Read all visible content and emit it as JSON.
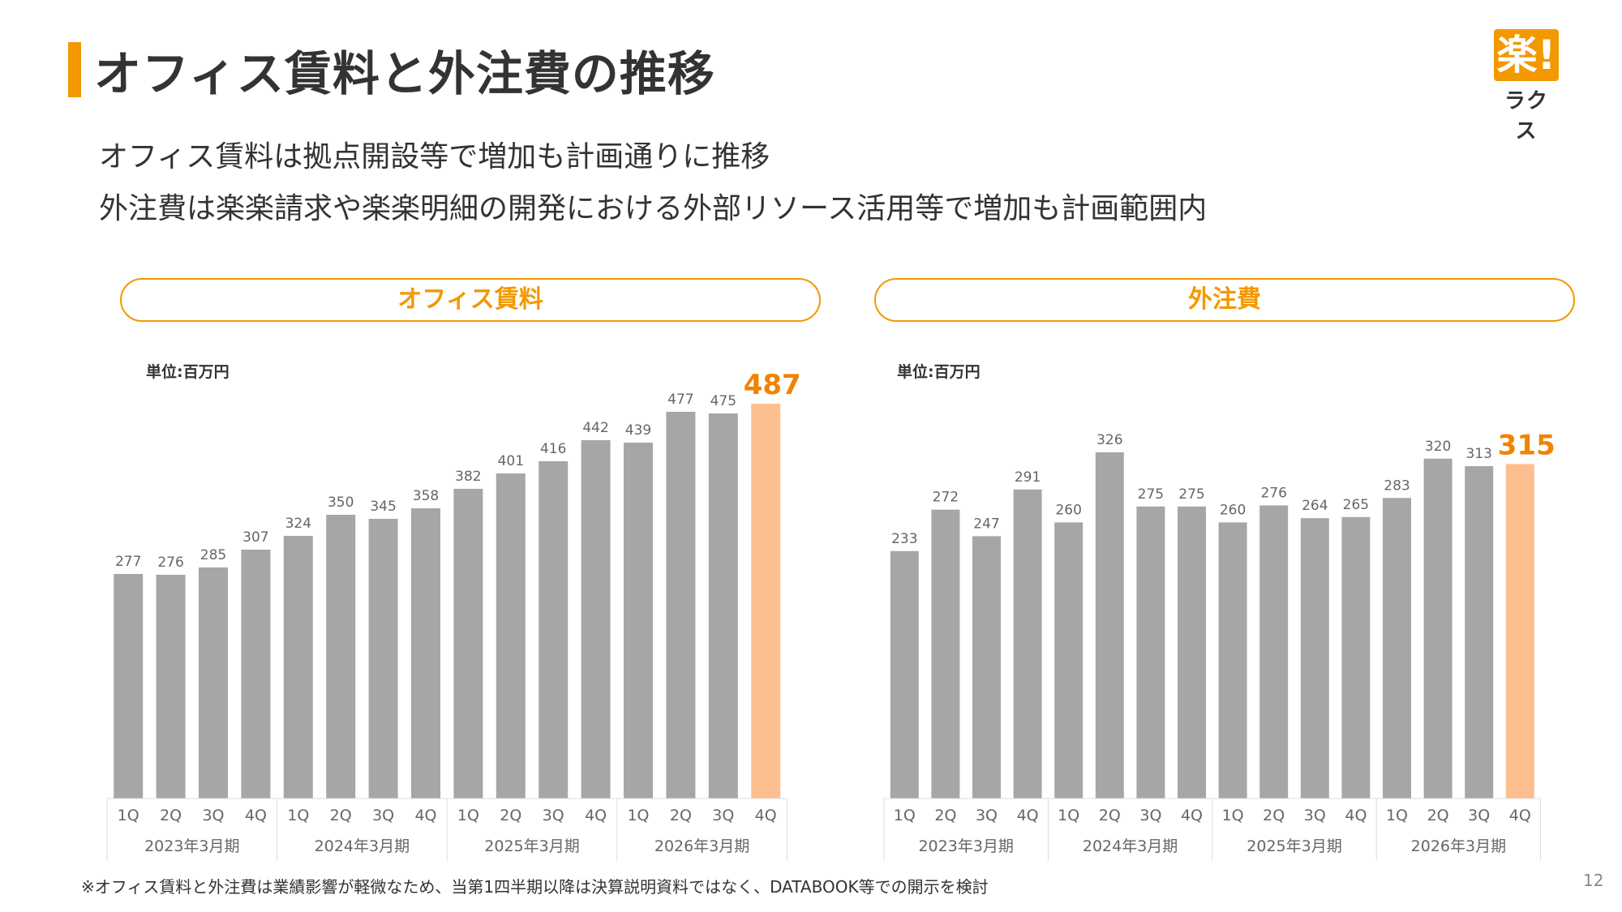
{
  "header": {
    "title": "オフィス賃料と外注費の推移",
    "subtitle_lines": [
      "オフィス賃料は拠点開設等で増加も計画通りに推移",
      "外注費は楽楽請求や楽楽明細の開発における外部リソース活用等で増加も計画範囲内"
    ]
  },
  "logo": {
    "mark": "楽!",
    "text": "ラクス"
  },
  "colors": {
    "accent": "#F39800",
    "bar_gray": "#A6A6A6",
    "bar_highlight": "#FDBF8F",
    "label_highlight": "#F08300"
  },
  "chart_data": [
    {
      "type": "bar",
      "title": "オフィス賃料",
      "unit": "単位:百万円",
      "quarters": [
        "1Q",
        "2Q",
        "3Q",
        "4Q",
        "1Q",
        "2Q",
        "3Q",
        "4Q",
        "1Q",
        "2Q",
        "3Q",
        "4Q",
        "1Q",
        "2Q",
        "3Q",
        "4Q"
      ],
      "periods": [
        "2023年3月期",
        "2024年3月期",
        "2025年3月期",
        "2026年3月期"
      ],
      "values": [
        277,
        276,
        285,
        307,
        324,
        350,
        345,
        358,
        382,
        401,
        416,
        442,
        439,
        477,
        475,
        487
      ],
      "highlight_index": 15,
      "ylim": [
        0,
        500
      ]
    },
    {
      "type": "bar",
      "title": "外注費",
      "unit": "単位:百万円",
      "quarters": [
        "1Q",
        "2Q",
        "3Q",
        "4Q",
        "1Q",
        "2Q",
        "3Q",
        "4Q",
        "1Q",
        "2Q",
        "3Q",
        "4Q",
        "1Q",
        "2Q",
        "3Q",
        "4Q"
      ],
      "periods": [
        "2023年3月期",
        "2024年3月期",
        "2025年3月期",
        "2026年3月期"
      ],
      "values": [
        233,
        272,
        247,
        291,
        260,
        326,
        275,
        275,
        260,
        276,
        264,
        265,
        283,
        320,
        313,
        315
      ],
      "highlight_index": 15,
      "ylim": [
        0,
        350
      ]
    }
  ],
  "footnote": "※オフィス賃料と外注費は業績影響が軽微なため、当第1四半期以降は決算説明資料ではなく、DATABOOK等での開示を検討",
  "page_number": "12"
}
